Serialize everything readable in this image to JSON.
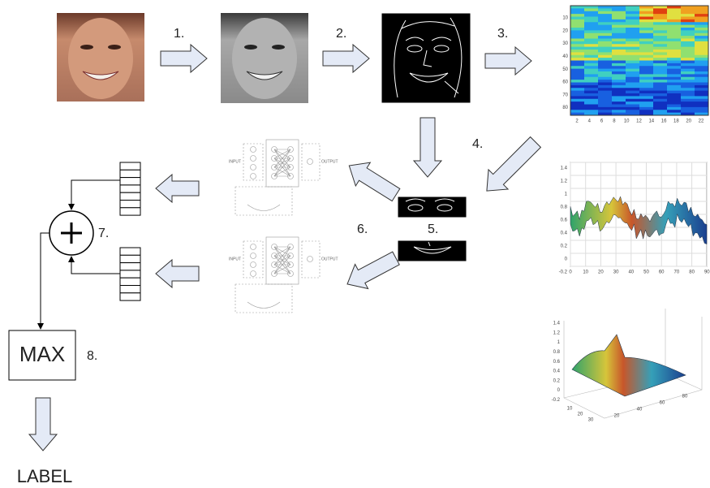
{
  "steps": [
    "1.",
    "2.",
    "3.",
    "4.",
    "5.",
    "6.",
    "7.",
    "8."
  ],
  "max": "MAX",
  "label": "LABEL",
  "network": {
    "input": "INPUT",
    "output": "OUTPUT"
  },
  "heatmap": {
    "yticks": [
      "10",
      "20",
      "30",
      "40",
      "50",
      "60",
      "70",
      "80"
    ],
    "xticks": [
      "2",
      "4",
      "6",
      "8",
      "10",
      "12",
      "14",
      "16",
      "18",
      "20",
      "22"
    ]
  },
  "plot2d": {
    "yticks": [
      "1.4",
      "1.2",
      "1",
      "0.8",
      "0.6",
      "0.4",
      "0.2",
      "0",
      "-0.2"
    ],
    "xticks": [
      "0",
      "10",
      "20",
      "30",
      "40",
      "50",
      "60",
      "70",
      "80",
      "90"
    ]
  },
  "plot3d": {
    "yticks": [
      "1.4",
      "1.2",
      "1",
      "0.8",
      "0.6",
      "0.4",
      "0.2",
      "0",
      "-0.2"
    ],
    "xticks_left": [
      "30",
      "20",
      "10"
    ],
    "xticks_right": [
      "20",
      "40",
      "60",
      "80"
    ]
  }
}
